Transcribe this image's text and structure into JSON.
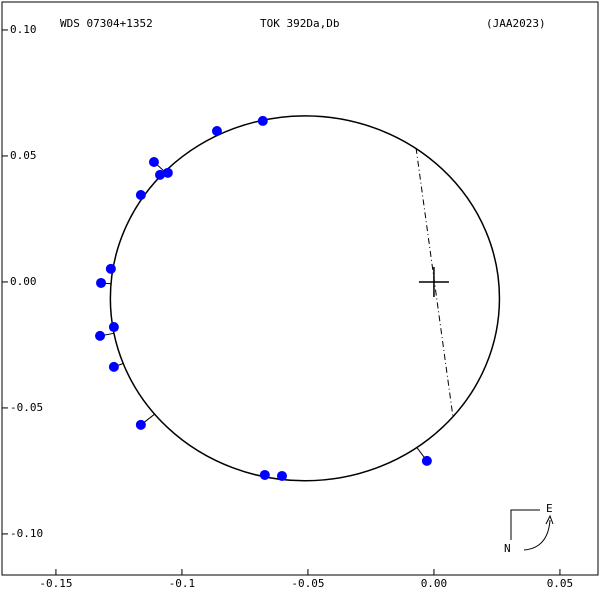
{
  "chart_data": {
    "type": "scatter",
    "title": "WDS 07304+1352",
    "subtitle": "TOK 392Da,Db",
    "reference": "(JAA2023)",
    "compass": {
      "east": "E",
      "north": "N"
    },
    "x": [
      -0.0679,
      -0.0861,
      -0.1111,
      -0.1087,
      -0.1056,
      -0.1163,
      -0.1282,
      -0.1321,
      -0.127,
      -0.1325,
      -0.127,
      -0.1163,
      -0.0671,
      -0.0603,
      -0.0028
    ],
    "y": [
      0.0639,
      0.0599,
      0.0476,
      0.0425,
      0.0433,
      0.0345,
      0.0052,
      -0.0004,
      -0.0179,
      -0.0214,
      -0.0337,
      -0.0567,
      -0.0766,
      -0.077,
      -0.071
    ],
    "color": "#0000ff",
    "orbit": {
      "cx": -0.0512,
      "cy": -0.0065,
      "rx": 0.0772,
      "ry": 0.0724
    },
    "line_of_nodes": {
      "x": [
        -0.0071,
        0.0075
      ],
      "y": [
        0.0532,
        -0.0532
      ]
    },
    "primary": {
      "x": 0,
      "y": 0
    },
    "xlim": [
      -0.1714,
      0.0651
    ],
    "ylim": [
      -0.1163,
      0.1111
    ],
    "xticks": [
      -0.15,
      -0.1,
      -0.05,
      {
        "value": 0,
        "label": "0.00"
      },
      0.05
    ],
    "yticks": [
      {
        "value": 0.1,
        "label": "0.10"
      },
      0.05,
      {
        "value": 0,
        "label": "0.00"
      },
      -0.05,
      {
        "value": -0.1,
        "label": "-0.10"
      }
    ]
  }
}
